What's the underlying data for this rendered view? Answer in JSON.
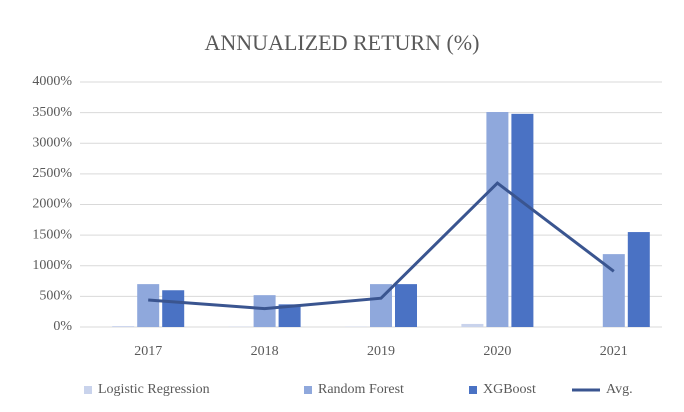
{
  "chart_data": {
    "type": "bar",
    "title": "ANNUALIZED RETURN (%)",
    "categories": [
      "2017",
      "2018",
      "2019",
      "2020",
      "2021"
    ],
    "series": [
      {
        "name": "Logistic Regression",
        "color": "#c9d3ec",
        "values": [
          15,
          5,
          5,
          50,
          0
        ]
      },
      {
        "name": "Random Forest",
        "color": "#8fa8dc",
        "values": [
          700,
          520,
          700,
          3510,
          1190
        ]
      },
      {
        "name": "XGBoost",
        "color": "#4a72c4",
        "values": [
          600,
          370,
          700,
          3480,
          1550
        ]
      },
      {
        "name": "Avg.",
        "color": "#3a5590",
        "type": "line",
        "values": [
          440,
          300,
          470,
          2350,
          910
        ]
      }
    ],
    "ylim": [
      0,
      4000
    ],
    "yticks": [
      {
        "value": 0,
        "label": "0%"
      },
      {
        "value": 500,
        "label": "500%"
      },
      {
        "value": 1000,
        "label": "1000%"
      },
      {
        "value": 1500,
        "label": "1500%"
      },
      {
        "value": 2000,
        "label": "2000%"
      },
      {
        "value": 2500,
        "label": "2500%"
      },
      {
        "value": 3000,
        "label": "3000%"
      },
      {
        "value": 3500,
        "label": "3500%"
      },
      {
        "value": 4000,
        "label": "4000%"
      }
    ],
    "grid": true,
    "legend": "bottom"
  }
}
